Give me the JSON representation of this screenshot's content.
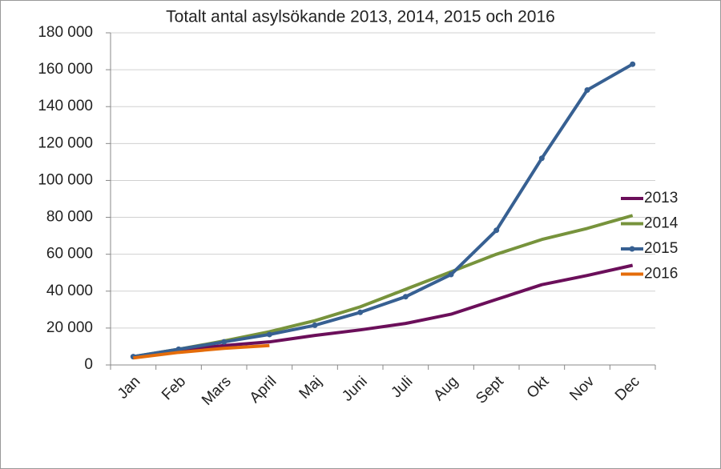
{
  "chart_data": {
    "type": "line",
    "title": "Totalt antal asylsökande 2013, 2014, 2015 och 2016",
    "categories": [
      "Jan",
      "Feb",
      "Mars",
      "April",
      "Maj",
      "Juni",
      "Juli",
      "Aug",
      "Sept",
      "Okt",
      "Nov",
      "Dec"
    ],
    "series": [
      {
        "name": "2013",
        "color": "#6b0f5a",
        "values": [
          4500,
          8000,
          10500,
          12500,
          16000,
          19000,
          22500,
          27500,
          35500,
          43500,
          48500,
          54000
        ]
      },
      {
        "name": "2014",
        "color": "#77933c",
        "values": [
          4500,
          8500,
          13000,
          18000,
          24000,
          31500,
          41000,
          50500,
          60000,
          68000,
          74000,
          81000
        ]
      },
      {
        "name": "2015",
        "color": "#376092",
        "markers": true,
        "values": [
          4500,
          8500,
          12500,
          16500,
          21500,
          28500,
          37000,
          49000,
          73000,
          112000,
          149000,
          163000
        ]
      },
      {
        "name": "2016",
        "color": "#e46c0a",
        "values": [
          3800,
          6800,
          9000,
          10500,
          null,
          null,
          null,
          null,
          null,
          null,
          null,
          null
        ]
      }
    ],
    "ylim": [
      0,
      180000
    ],
    "yticks": [
      0,
      {
        "value": 20000,
        "label": "20 000"
      },
      {
        "value": 40000,
        "label": "40 000"
      },
      {
        "value": 60000,
        "label": "60 000"
      },
      {
        "value": 80000,
        "label": "80 000"
      },
      {
        "value": 100000,
        "label": "100 000"
      },
      {
        "value": 120000,
        "label": "120 000"
      },
      {
        "value": 140000,
        "label": "140 000"
      },
      {
        "value": 160000,
        "label": "160 000"
      },
      {
        "value": 180000,
        "label": "180 000"
      }
    ],
    "grid": true,
    "legend": "right"
  }
}
